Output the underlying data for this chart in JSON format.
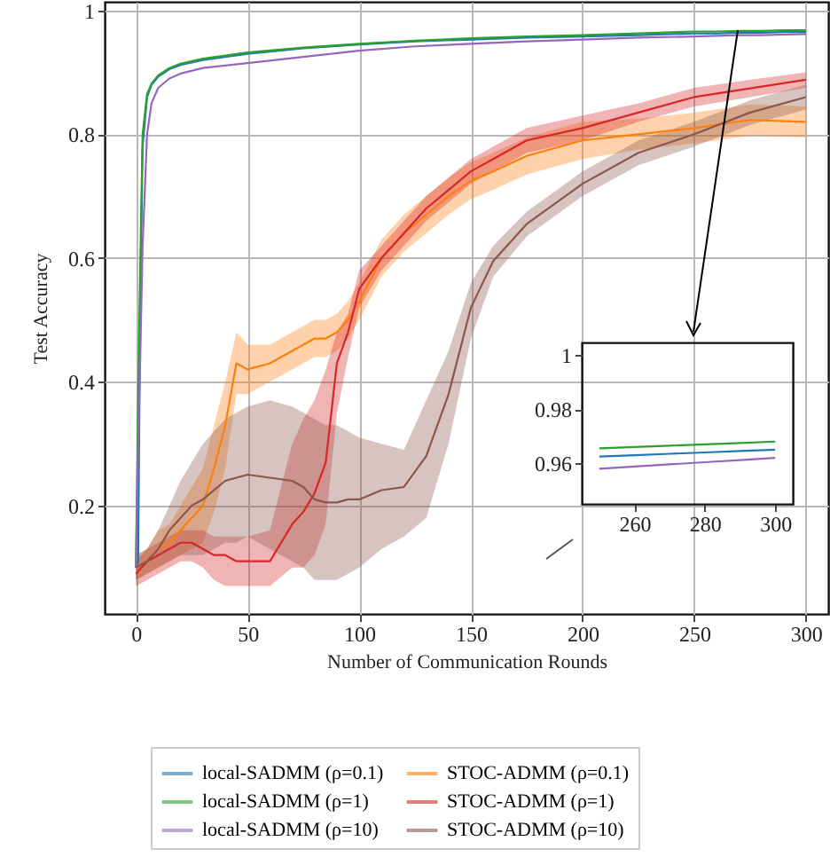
{
  "chart_data": [
    {
      "type": "line",
      "xlabel": "Number of Communication Rounds",
      "ylabel": "Test Accuracy",
      "xlim": [
        -14,
        310
      ],
      "ylim": [
        0.025,
        1.014
      ],
      "xticks": [
        0,
        50,
        100,
        150,
        200,
        250,
        300
      ],
      "yticks": [
        0.2,
        0.4,
        0.6,
        0.8,
        1
      ],
      "grid": true,
      "legend": "bottom",
      "x": [
        0,
        1,
        2,
        3,
        5,
        7,
        10,
        15,
        20,
        30,
        50,
        75,
        100,
        125,
        150,
        175,
        200,
        225,
        250,
        260,
        270,
        280,
        290,
        300
      ],
      "series": [
        {
          "name": "local-SADMM (ρ=0.1)",
          "color": "#1f77b4",
          "values": [
            0.1,
            0.11,
            0.55,
            0.78,
            0.86,
            0.88,
            0.893,
            0.905,
            0.912,
            0.92,
            0.93,
            0.939,
            0.945,
            0.95,
            0.953,
            0.956,
            0.958,
            0.96,
            0.963,
            0.963,
            0.964,
            0.964,
            0.965,
            0.965
          ]
        },
        {
          "name": "local-SADMM (ρ=1)",
          "color": "#2ca02c",
          "values": [
            0.1,
            0.38,
            0.6,
            0.8,
            0.865,
            0.882,
            0.895,
            0.907,
            0.914,
            0.922,
            0.932,
            0.94,
            0.946,
            0.951,
            0.955,
            0.958,
            0.96,
            0.963,
            0.966,
            0.966,
            0.967,
            0.967,
            0.968,
            0.968
          ]
        },
        {
          "name": "local-SADMM (ρ=10)",
          "color": "#9467bd",
          "values": [
            0.1,
            0.3,
            0.45,
            0.62,
            0.8,
            0.85,
            0.875,
            0.89,
            0.898,
            0.907,
            0.915,
            0.925,
            0.935,
            0.942,
            0.946,
            0.95,
            0.953,
            0.956,
            0.958,
            0.959,
            0.96,
            0.96,
            0.961,
            0.962
          ]
        },
        {
          "name": "STOC-ADMM (ρ=0.1)",
          "color": "#ff7f0e",
          "x": [
            0,
            5,
            10,
            15,
            20,
            25,
            30,
            35,
            40,
            45,
            50,
            60,
            70,
            75,
            80,
            85,
            90,
            95,
            100,
            110,
            120,
            130,
            140,
            150,
            160,
            175,
            200,
            225,
            250,
            275,
            300
          ],
          "values": [
            0.1,
            0.11,
            0.13,
            0.14,
            0.16,
            0.18,
            0.2,
            0.26,
            0.33,
            0.43,
            0.42,
            0.43,
            0.45,
            0.46,
            0.47,
            0.47,
            0.48,
            0.5,
            0.53,
            0.6,
            0.64,
            0.67,
            0.7,
            0.725,
            0.74,
            0.765,
            0.79,
            0.8,
            0.81,
            0.823,
            0.82
          ],
          "lower": [
            0.08,
            0.09,
            0.1,
            0.11,
            0.12,
            0.13,
            0.14,
            0.19,
            0.26,
            0.38,
            0.38,
            0.4,
            0.42,
            0.43,
            0.44,
            0.44,
            0.45,
            0.47,
            0.5,
            0.57,
            0.61,
            0.64,
            0.67,
            0.695,
            0.71,
            0.735,
            0.76,
            0.775,
            0.785,
            0.798,
            0.795
          ],
          "upper": [
            0.12,
            0.13,
            0.16,
            0.17,
            0.2,
            0.23,
            0.26,
            0.33,
            0.4,
            0.48,
            0.46,
            0.46,
            0.48,
            0.49,
            0.5,
            0.5,
            0.51,
            0.53,
            0.56,
            0.63,
            0.67,
            0.7,
            0.73,
            0.755,
            0.77,
            0.795,
            0.82,
            0.825,
            0.835,
            0.848,
            0.845
          ]
        },
        {
          "name": "STOC-ADMM (ρ=1)",
          "color": "#d62728",
          "x": [
            0,
            5,
            10,
            15,
            20,
            25,
            30,
            35,
            40,
            45,
            50,
            60,
            70,
            75,
            80,
            85,
            90,
            95,
            100,
            110,
            120,
            130,
            140,
            150,
            160,
            175,
            200,
            225,
            250,
            275,
            300
          ],
          "values": [
            0.09,
            0.11,
            0.12,
            0.13,
            0.14,
            0.14,
            0.13,
            0.12,
            0.12,
            0.11,
            0.11,
            0.11,
            0.17,
            0.19,
            0.22,
            0.27,
            0.43,
            0.48,
            0.55,
            0.6,
            0.64,
            0.68,
            0.71,
            0.74,
            0.76,
            0.79,
            0.81,
            0.835,
            0.86,
            0.874,
            0.888
          ],
          "lower": [
            0.07,
            0.08,
            0.09,
            0.1,
            0.11,
            0.11,
            0.1,
            0.08,
            0.07,
            0.07,
            0.07,
            0.07,
            0.1,
            0.1,
            0.12,
            0.17,
            0.35,
            0.44,
            0.52,
            0.58,
            0.62,
            0.66,
            0.69,
            0.72,
            0.74,
            0.77,
            0.79,
            0.82,
            0.845,
            0.86,
            0.875
          ],
          "upper": [
            0.11,
            0.13,
            0.14,
            0.15,
            0.16,
            0.16,
            0.16,
            0.15,
            0.15,
            0.15,
            0.15,
            0.16,
            0.3,
            0.34,
            0.37,
            0.42,
            0.48,
            0.51,
            0.58,
            0.62,
            0.66,
            0.7,
            0.73,
            0.76,
            0.78,
            0.81,
            0.83,
            0.85,
            0.875,
            0.888,
            0.9
          ]
        },
        {
          "name": "STOC-ADMM (ρ=10)",
          "color": "#8c564b",
          "x": [
            0,
            5,
            10,
            15,
            20,
            25,
            30,
            35,
            40,
            45,
            50,
            60,
            70,
            75,
            80,
            85,
            90,
            95,
            100,
            110,
            120,
            130,
            140,
            150,
            160,
            175,
            200,
            225,
            250,
            275,
            300
          ],
          "values": [
            0.1,
            0.11,
            0.13,
            0.16,
            0.18,
            0.2,
            0.21,
            0.225,
            0.24,
            0.245,
            0.25,
            0.245,
            0.24,
            0.23,
            0.21,
            0.205,
            0.205,
            0.21,
            0.21,
            0.225,
            0.23,
            0.28,
            0.38,
            0.52,
            0.595,
            0.655,
            0.72,
            0.77,
            0.8,
            0.835,
            0.86
          ],
          "lower": [
            0.08,
            0.09,
            0.1,
            0.11,
            0.12,
            0.12,
            0.12,
            0.13,
            0.14,
            0.14,
            0.15,
            0.13,
            0.11,
            0.1,
            0.08,
            0.08,
            0.08,
            0.09,
            0.1,
            0.13,
            0.15,
            0.18,
            0.3,
            0.47,
            0.57,
            0.635,
            0.7,
            0.75,
            0.78,
            0.815,
            0.84
          ],
          "upper": [
            0.12,
            0.13,
            0.16,
            0.2,
            0.24,
            0.27,
            0.3,
            0.32,
            0.34,
            0.35,
            0.36,
            0.37,
            0.36,
            0.35,
            0.34,
            0.33,
            0.33,
            0.32,
            0.31,
            0.3,
            0.29,
            0.37,
            0.45,
            0.56,
            0.62,
            0.675,
            0.74,
            0.79,
            0.82,
            0.855,
            0.88
          ]
        }
      ]
    },
    {
      "type": "line",
      "xlim": [
        245,
        305
      ],
      "ylim": [
        0.945,
        1.0046
      ],
      "xticks": [
        260,
        280,
        300
      ],
      "yticks": [
        0.96,
        0.98,
        1
      ],
      "x": [
        250,
        260,
        270,
        280,
        290,
        300
      ],
      "series": [
        {
          "color": "#1f77b4",
          "values": [
            0.9625,
            0.963,
            0.9635,
            0.964,
            0.9645,
            0.965
          ]
        },
        {
          "color": "#2ca02c",
          "values": [
            0.9655,
            0.966,
            0.9665,
            0.967,
            0.9675,
            0.968
          ]
        },
        {
          "color": "#9467bd",
          "values": [
            0.958,
            0.9588,
            0.9596,
            0.9604,
            0.9612,
            0.962
          ]
        }
      ]
    }
  ]
}
